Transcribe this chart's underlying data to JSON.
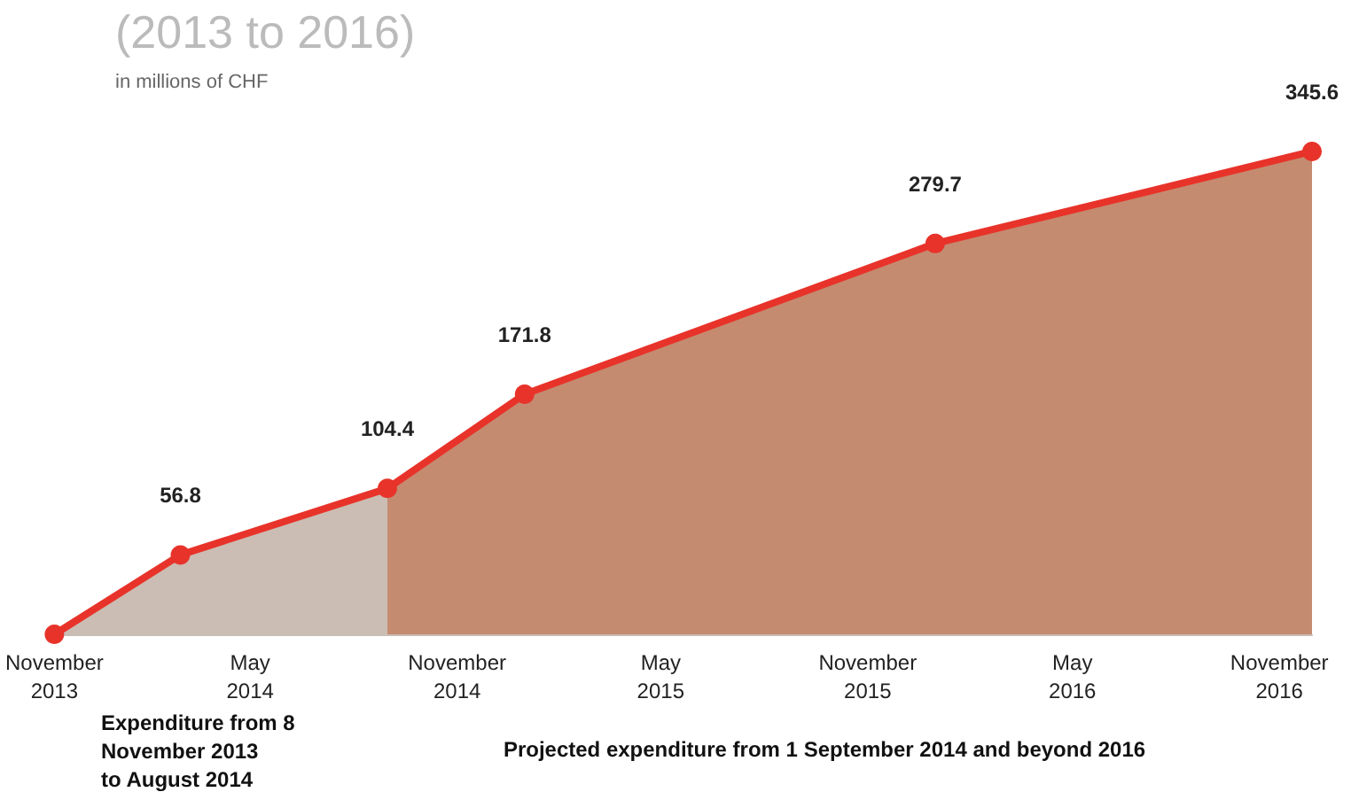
{
  "chart_data": {
    "type": "area",
    "title": "(2013 to 2016)",
    "subtitle": "in millions of CHF",
    "xlim": [
      "2013-11-08",
      "2016-11-30"
    ],
    "xticks": [
      {
        "value": "2013-11-08",
        "label": "November\n2013"
      },
      {
        "value": "2014-05-01",
        "label": "May\n2014"
      },
      {
        "value": "2014-11-01",
        "label": "November\n2014"
      },
      {
        "value": "2015-05-01",
        "label": "May\n2015"
      },
      {
        "value": "2015-11-01",
        "label": "November\n2015"
      },
      {
        "value": "2016-05-01",
        "label": "May\n2016"
      },
      {
        "value": "2016-11-01",
        "label": "November\n2016"
      }
    ],
    "grid": false,
    "series": [
      {
        "color": "#cbbdb3",
        "x": [
          "2013-11-08",
          "2014-02-28",
          "2014-08-31"
        ],
        "values": [
          0,
          56.8,
          104.4
        ]
      },
      {
        "color": "#c48b70",
        "x": [
          "2014-08-31",
          "2014-12-31",
          "2015-12-31",
          "2016-11-30"
        ],
        "values": [
          104.4,
          171.8,
          279.7,
          345.6
        ]
      },
      {
        "type": "line",
        "color": "#e8332a",
        "marker": "circle",
        "x": [
          "2013-11-08",
          "2014-02-28",
          "2014-08-31",
          "2014-12-31",
          "2015-12-31",
          "2016-11-30"
        ],
        "values": [
          0,
          56.8,
          104.4,
          171.8,
          279.7,
          345.6
        ],
        "value_labels": [
          null,
          "56.8",
          "104.4",
          "171.8",
          "279.7",
          "345.6"
        ]
      }
    ],
    "annotations": [
      "Expenditure from 8\nNovember 2013\nto August 2014",
      "Projected expenditure from 1 September 2014 and beyond 2016"
    ]
  }
}
